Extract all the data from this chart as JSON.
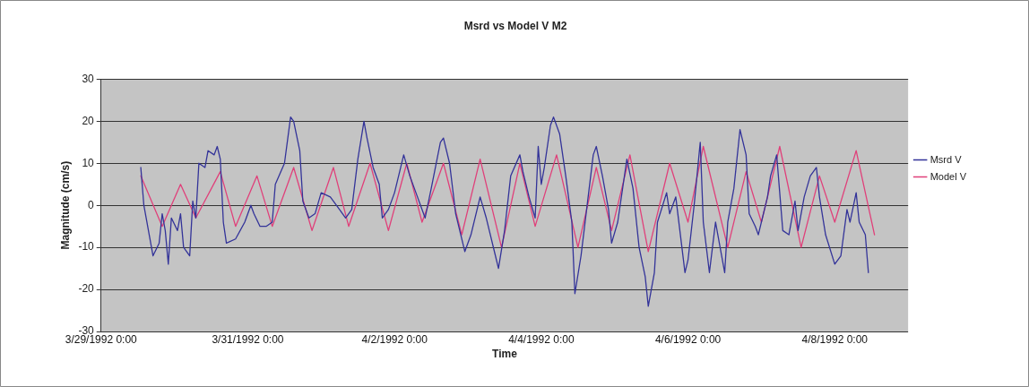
{
  "chart_data": {
    "type": "line",
    "title": "Msrd vs Model V M2",
    "xlabel": "Time",
    "ylabel": "Magnitude (cm/s)",
    "xlim": [
      "1992-03-29T00:00",
      "1992-04-09T00:00"
    ],
    "xticks": [
      {
        "value": "1992-03-29T00:00",
        "label": "3/29/1992 0:00"
      },
      {
        "value": "1992-03-31T00:00",
        "label": "3/31/1992 0:00"
      },
      {
        "value": "1992-04-02T00:00",
        "label": "4/2/1992 0:00"
      },
      {
        "value": "1992-04-04T00:00",
        "label": "4/4/1992 0:00"
      },
      {
        "value": "1992-04-06T00:00",
        "label": "4/6/1992 0:00"
      },
      {
        "value": "1992-04-08T00:00",
        "label": "4/8/1992 0:00"
      }
    ],
    "ylim": [
      -30,
      30
    ],
    "yticks": [
      -30,
      -20,
      -10,
      0,
      10,
      20,
      30
    ],
    "grid": "y",
    "legend": "right",
    "marker": "none",
    "line_style": "solid",
    "series": [
      {
        "name": "Msrd V",
        "color": "#333399",
        "x": [
          "1992-03-29T13:00",
          "1992-03-29T14:00",
          "1992-03-29T15:00",
          "1992-03-29T17:00",
          "1992-03-29T19:00",
          "1992-03-29T20:00",
          "1992-03-29T21:00",
          "1992-03-29T22:00",
          "1992-03-29T23:00",
          "1992-03-30T01:00",
          "1992-03-30T02:00",
          "1992-03-30T03:00",
          "1992-03-30T05:00",
          "1992-03-30T06:00",
          "1992-03-30T07:00",
          "1992-03-30T08:00",
          "1992-03-30T10:00",
          "1992-03-30T11:00",
          "1992-03-30T13:00",
          "1992-03-30T14:00",
          "1992-03-30T15:00",
          "1992-03-30T16:00",
          "1992-03-30T17:00",
          "1992-03-30T20:00",
          "1992-03-30T23:00",
          "1992-03-31T01:00",
          "1992-03-31T02:00",
          "1992-03-31T04:00",
          "1992-03-31T06:00",
          "1992-03-31T08:00",
          "1992-03-31T09:00",
          "1992-03-31T12:00",
          "1992-03-31T14:00",
          "1992-03-31T15:00",
          "1992-03-31T17:00",
          "1992-03-31T18:00",
          "1992-03-31T20:00",
          "1992-03-31T22:00",
          "1992-04-01T00:00",
          "1992-04-01T03:00",
          "1992-04-01T06:00",
          "1992-04-01T08:00",
          "1992-04-01T10:00",
          "1992-04-01T12:00",
          "1992-04-01T14:00",
          "1992-04-01T15:00",
          "1992-04-01T17:00",
          "1992-04-01T19:00",
          "1992-04-01T20:00",
          "1992-04-01T22:00",
          "1992-04-02T00:00",
          "1992-04-02T03:00",
          "1992-04-02T05:00",
          "1992-04-02T07:00",
          "1992-04-02T10:00",
          "1992-04-02T12:00",
          "1992-04-02T15:00",
          "1992-04-02T16:00",
          "1992-04-02T18:00",
          "1992-04-02T20:00",
          "1992-04-02T23:00",
          "1992-04-03T01:00",
          "1992-04-03T04:00",
          "1992-04-03T06:00",
          "1992-04-03T07:00",
          "1992-04-03T09:00",
          "1992-04-03T10:00",
          "1992-04-03T12:00",
          "1992-04-03T14:00",
          "1992-04-03T17:00",
          "1992-04-03T18:00",
          "1992-04-03T20:00",
          "1992-04-03T22:00",
          "1992-04-03T23:00",
          "1992-04-04T00:00",
          "1992-04-04T01:00",
          "1992-04-04T03:00",
          "1992-04-04T04:00",
          "1992-04-04T06:00",
          "1992-04-04T08:00",
          "1992-04-04T10:00",
          "1992-04-04T11:00",
          "1992-04-04T13:00",
          "1992-04-04T15:00",
          "1992-04-04T17:00",
          "1992-04-04T18:00",
          "1992-04-04T20:00",
          "1992-04-04T22:00",
          "1992-04-04T23:00",
          "1992-04-05T01:00",
          "1992-04-05T04:00",
          "1992-04-05T06:00",
          "1992-04-05T08:00",
          "1992-04-05T10:00",
          "1992-04-05T11:00",
          "1992-04-05T13:00",
          "1992-04-05T14:00",
          "1992-04-05T17:00",
          "1992-04-05T18:00",
          "1992-04-05T20:00",
          "1992-04-05T22:00",
          "1992-04-05T23:00",
          "1992-04-06T00:00",
          "1992-04-06T02:00",
          "1992-04-06T04:00",
          "1992-04-06T05:00",
          "1992-04-06T07:00",
          "1992-04-06T09:00",
          "1992-04-06T12:00",
          "1992-04-06T13:00",
          "1992-04-06T15:00",
          "1992-04-06T17:00",
          "1992-04-06T19:00",
          "1992-04-06T20:00",
          "1992-04-06T22:00",
          "1992-04-06T23:00",
          "1992-04-07T02:00",
          "1992-04-07T03:00",
          "1992-04-07T05:00",
          "1992-04-07T07:00",
          "1992-04-07T09:00",
          "1992-04-07T11:00",
          "1992-04-07T12:00",
          "1992-04-07T14:00",
          "1992-04-07T16:00",
          "1992-04-07T18:00",
          "1992-04-07T19:00",
          "1992-04-07T21:00",
          "1992-04-08T00:00",
          "1992-04-08T02:00",
          "1992-04-08T04:00",
          "1992-04-08T05:00",
          "1992-04-08T07:00",
          "1992-04-08T08:00",
          "1992-04-08T10:00",
          "1992-04-08T11:00"
        ],
        "values": [
          9,
          0,
          -4,
          -12,
          -9,
          -2,
          -6,
          -14,
          -3,
          -6,
          -2,
          -10,
          -12,
          1,
          -3,
          10,
          9,
          13,
          12,
          14,
          11,
          -4,
          -9,
          -8,
          -4,
          0,
          -2,
          -5,
          -5,
          -4,
          5,
          10,
          21,
          20,
          13,
          1,
          -3,
          -2,
          3,
          2,
          -1,
          -3,
          -1,
          11,
          20,
          16,
          9,
          5,
          -3,
          -1,
          3,
          12,
          7,
          3,
          -3,
          4,
          15,
          16,
          10,
          -2,
          -11,
          -7,
          2,
          -3,
          -6,
          -12,
          -15,
          -6,
          7,
          12,
          8,
          2,
          -3,
          14,
          5,
          9,
          19,
          21,
          17,
          7,
          -4,
          -21,
          -12,
          0,
          12,
          14,
          7,
          -1,
          -9,
          -4,
          11,
          4,
          -10,
          -17,
          -24,
          -16,
          -4,
          3,
          -2,
          2,
          -10,
          -16,
          -13,
          0,
          15,
          -4,
          -16,
          -4,
          -16,
          -4,
          4,
          18,
          12,
          -2,
          -5,
          -7,
          2,
          7,
          12,
          -6,
          -7,
          1,
          -6,
          2,
          7,
          9,
          2,
          -7,
          -14,
          -12,
          -1,
          -4,
          3,
          -4,
          -7,
          -16
        ]
      },
      {
        "name": "Model V",
        "color": "#e0407a",
        "x": [
          "1992-03-29T13:00",
          "1992-03-29T20:00",
          "1992-03-30T02:00",
          "1992-03-30T07:00",
          "1992-03-30T15:00",
          "1992-03-30T20:00",
          "1992-03-31T03:00",
          "1992-03-31T08:00",
          "1992-03-31T15:00",
          "1992-03-31T21:00",
          "1992-04-01T04:00",
          "1992-04-01T09:00",
          "1992-04-01T16:00",
          "1992-04-01T22:00",
          "1992-04-02T04:00",
          "1992-04-02T09:00",
          "1992-04-02T16:00",
          "1992-04-02T22:00",
          "1992-04-03T04:00",
          "1992-04-03T11:00",
          "1992-04-03T17:00",
          "1992-04-03T22:00",
          "1992-04-04T05:00",
          "1992-04-04T12:00",
          "1992-04-04T18:00",
          "1992-04-04T23:00",
          "1992-04-05T05:00",
          "1992-04-05T11:00",
          "1992-04-05T18:00",
          "1992-04-06T00:00",
          "1992-04-06T05:00",
          "1992-04-06T13:00",
          "1992-04-06T19:00",
          "1992-04-07T00:00",
          "1992-04-07T06:00",
          "1992-04-07T13:00",
          "1992-04-07T19:00",
          "1992-04-08T00:00",
          "1992-04-08T07:00",
          "1992-04-08T13:00"
        ],
        "values": [
          7,
          -5,
          5,
          -3,
          8,
          -5,
          7,
          -5,
          9,
          -6,
          9,
          -5,
          10,
          -6,
          10,
          -4,
          10,
          -7,
          11,
          -10,
          10,
          -5,
          12,
          -10,
          9,
          -6,
          12,
          -11,
          10,
          -4,
          14,
          -10,
          8,
          -4,
          14,
          -10,
          7,
          -4,
          13,
          -7
        ]
      }
    ]
  }
}
